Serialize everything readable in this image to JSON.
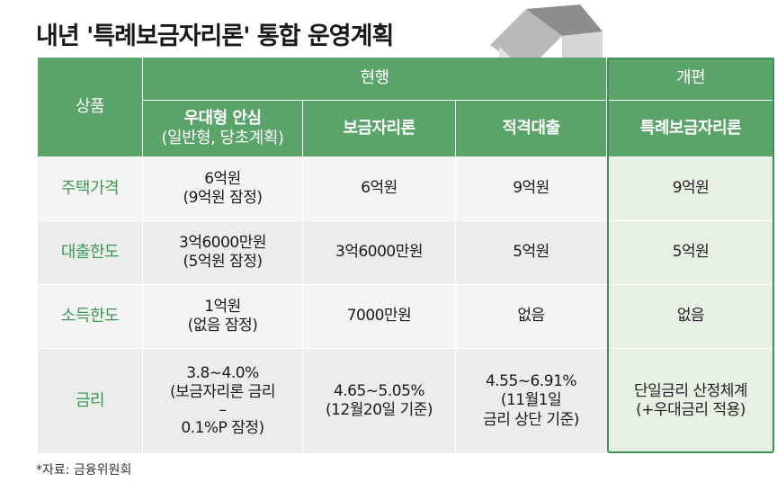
{
  "title": "내년 '특례보금자리론' 통합 운영계획",
  "header": {
    "product": "상품",
    "current": "현행",
    "revised": "개편",
    "col1_line1": "우대형 안심",
    "col1_line2": "(일반형, 당초계획)",
    "col2": "보금자리론",
    "col3": "적격대출",
    "col4": "특례보금자리론"
  },
  "rows": [
    {
      "label": "주택가격",
      "c1_line1": "6억원",
      "c1_line2": "(9억원 잠정)",
      "c2": "6억원",
      "c3": "9억원",
      "c4": "9억원"
    },
    {
      "label": "대출한도",
      "c1_line1": "3억6000만원",
      "c1_line2": "(5억원 잠정)",
      "c2": "3억6000만원",
      "c3": "5억원",
      "c4": "5억원"
    },
    {
      "label": "소득한도",
      "c1_line1": "1억원",
      "c1_line2": "(없음 잠정)",
      "c2": "7000만원",
      "c3": "없음",
      "c4": "없음"
    },
    {
      "label": "금리",
      "c1_line1": "3.8~4.0%",
      "c1_line2": "(보금자리론 금리",
      "c1_line3": "–",
      "c1_line4": "0.1%P 잠정)",
      "c2_line1": "4.65~5.05%",
      "c2_line2": "(12월20일 기준)",
      "c3_line1": "4.55~6.91%",
      "c3_line2": "(11월1일",
      "c3_line3": "금리 상단 기준)",
      "c4_line1": "단일금리 산정체계",
      "c4_line2": "(+우대금리 적용)"
    }
  ],
  "source": "*자료: 금융위원회",
  "colors": {
    "header_green": "#5aa46a",
    "label_green": "#3a9a52",
    "highlight_border": "#3f8e54"
  }
}
